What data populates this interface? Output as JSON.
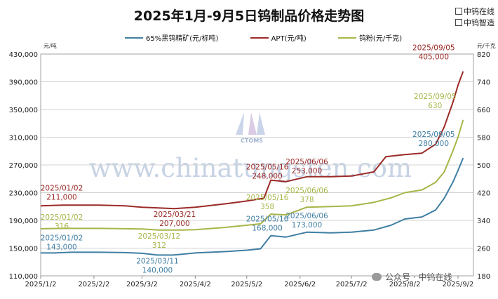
{
  "title": "2025年1月-9月5日钨制品价格走势图",
  "brand": {
    "line1": "中钨在线",
    "line2": "中钨智造"
  },
  "units": {
    "left": "元/吨",
    "right": "元/千克"
  },
  "watermark": {
    "text": "www.chinatungsten.com",
    "logo_text": "CTOMS"
  },
  "footer": {
    "wechat": "公众号 · 中钨在线"
  },
  "colors": {
    "concentrate": "#3f7fa3",
    "apt": "#9b2a27",
    "powder": "#a8b548"
  },
  "chart_data": {
    "type": "line",
    "title": "2025年1月-9月5日钨制品价格走势图",
    "x_ticks": [
      "2025/1/2",
      "2025/2/2",
      "2025/3/2",
      "2025/4/2",
      "2025/5/2",
      "2025/6/2",
      "2025/7/2",
      "2025/8/2",
      "2025/9/2"
    ],
    "x_range": [
      "2025/1/2",
      "2025/9/11"
    ],
    "y_left": {
      "ticks": [
        "110,000",
        "150,000",
        "190,000",
        "230,000",
        "270,000",
        "310,000",
        "350,000",
        "390,000",
        "430,000"
      ],
      "min": 110000,
      "max": 430000
    },
    "y_right": {
      "ticks": [
        "180",
        "260",
        "340",
        "420",
        "500",
        "580",
        "660",
        "740",
        "820"
      ],
      "min": 180,
      "max": 820
    },
    "grid": "horizontal",
    "legend_position": "top",
    "series": [
      {
        "name": "65%黑钨精矿(元/标吨)",
        "axis": "left",
        "color_key": "concentrate",
        "points": [
          [
            "2025/1/2",
            143000
          ],
          [
            "2025/1/10",
            143000
          ],
          [
            "2025/1/20",
            144000
          ],
          [
            "2025/2/5",
            144000
          ],
          [
            "2025/2/20",
            143500
          ],
          [
            "2025/3/2",
            142500
          ],
          [
            "2025/3/11",
            140000
          ],
          [
            "2025/3/20",
            140000
          ],
          [
            "2025/4/2",
            143000
          ],
          [
            "2025/4/20",
            145000
          ],
          [
            "2025/5/2",
            147000
          ],
          [
            "2025/5/10",
            149000
          ],
          [
            "2025/5/16",
            168000
          ],
          [
            "2025/5/25",
            166000
          ],
          [
            "2025/6/6",
            173000
          ],
          [
            "2025/6/20",
            172000
          ],
          [
            "2025/7/2",
            173000
          ],
          [
            "2025/7/15",
            176000
          ],
          [
            "2025/7/25",
            183000
          ],
          [
            "2025/8/2",
            192000
          ],
          [
            "2025/8/12",
            195000
          ],
          [
            "2025/8/20",
            205000
          ],
          [
            "2025/8/25",
            222000
          ],
          [
            "2025/8/30",
            245000
          ],
          [
            "2025/9/2",
            262000
          ],
          [
            "2025/9/5",
            280000
          ]
        ]
      },
      {
        "name": "APT(元/吨)",
        "axis": "left",
        "color_key": "apt",
        "points": [
          [
            "2025/1/2",
            211000
          ],
          [
            "2025/1/15",
            212000
          ],
          [
            "2025/2/5",
            212000
          ],
          [
            "2025/2/20",
            211000
          ],
          [
            "2025/3/2",
            209000
          ],
          [
            "2025/3/21",
            207000
          ],
          [
            "2025/4/2",
            209000
          ],
          [
            "2025/4/20",
            214000
          ],
          [
            "2025/5/2",
            218000
          ],
          [
            "2025/5/12",
            222000
          ],
          [
            "2025/5/16",
            248000
          ],
          [
            "2025/5/25",
            246000
          ],
          [
            "2025/6/6",
            253000
          ],
          [
            "2025/6/20",
            253000
          ],
          [
            "2025/7/2",
            254000
          ],
          [
            "2025/7/15",
            260000
          ],
          [
            "2025/7/22",
            282000
          ],
          [
            "2025/8/2",
            285000
          ],
          [
            "2025/8/12",
            287000
          ],
          [
            "2025/8/20",
            300000
          ],
          [
            "2025/8/25",
            325000
          ],
          [
            "2025/8/30",
            360000
          ],
          [
            "2025/9/2",
            385000
          ],
          [
            "2025/9/5",
            405000
          ]
        ]
      },
      {
        "name": "钨粉(元/千克)",
        "axis": "right",
        "color_key": "powder",
        "points": [
          [
            "2025/1/2",
            316
          ],
          [
            "2025/1/15",
            317
          ],
          [
            "2025/2/5",
            317
          ],
          [
            "2025/2/20",
            316
          ],
          [
            "2025/3/2",
            315
          ],
          [
            "2025/3/12",
            312
          ],
          [
            "2025/3/25",
            312
          ],
          [
            "2025/4/2",
            313
          ],
          [
            "2025/4/20",
            320
          ],
          [
            "2025/5/2",
            326
          ],
          [
            "2025/5/10",
            330
          ],
          [
            "2025/5/16",
            358
          ],
          [
            "2025/5/25",
            356
          ],
          [
            "2025/6/6",
            378
          ],
          [
            "2025/6/20",
            380
          ],
          [
            "2025/7/2",
            382
          ],
          [
            "2025/7/15",
            392
          ],
          [
            "2025/7/25",
            405
          ],
          [
            "2025/8/2",
            420
          ],
          [
            "2025/8/12",
            428
          ],
          [
            "2025/8/20",
            450
          ],
          [
            "2025/8/25",
            480
          ],
          [
            "2025/8/30",
            540
          ],
          [
            "2025/9/2",
            580
          ],
          [
            "2025/9/5",
            630
          ]
        ]
      }
    ],
    "annotations": [
      {
        "series": "apt",
        "date": "2025/01/02",
        "value": "211,000"
      },
      {
        "series": "powder",
        "date": "2025/01/02",
        "value": "316"
      },
      {
        "series": "concentrate",
        "date": "2025/01/02",
        "value": "143,000"
      },
      {
        "series": "apt",
        "date": "2025/03/21",
        "value": "207,000"
      },
      {
        "series": "powder",
        "date": "2025/03/12",
        "value": "312"
      },
      {
        "series": "concentrate",
        "date": "2025/03/11",
        "value": "140,000"
      },
      {
        "series": "apt",
        "date": "2025/05/16",
        "value": "248,000"
      },
      {
        "series": "powder",
        "date": "2025/05/16",
        "value": "358"
      },
      {
        "series": "concentrate",
        "date": "2025/05/16",
        "value": "168,000"
      },
      {
        "series": "apt",
        "date": "2025/06/06",
        "value": "253,000"
      },
      {
        "series": "powder",
        "date": "2025/06/06",
        "value": "378"
      },
      {
        "series": "concentrate",
        "date": "2025/06/06",
        "value": "173,000"
      },
      {
        "series": "apt",
        "date": "2025/09/05",
        "value": "405,000"
      },
      {
        "series": "powder",
        "date": "2025/09/05",
        "value": "630"
      },
      {
        "series": "concentrate",
        "date": "2025/09/05",
        "value": "280,000"
      }
    ]
  }
}
